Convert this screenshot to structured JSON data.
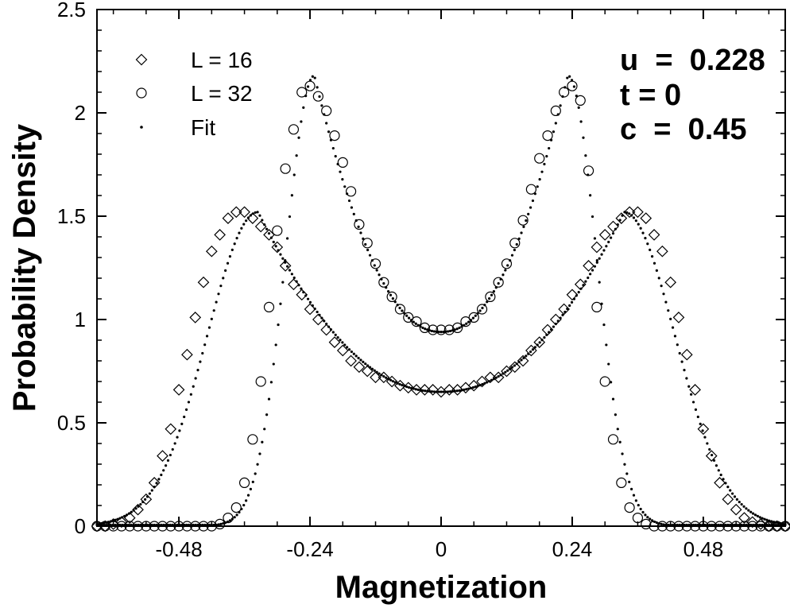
{
  "chart_data": {
    "type": "scatter",
    "xlabel": "Magnetization",
    "ylabel": "Probability  Density",
    "xlim": [
      -0.63,
      0.63
    ],
    "ylim": [
      0,
      2.5
    ],
    "xticks": [
      -0.48,
      -0.24,
      0,
      0.24,
      0.48
    ],
    "xtick_labels": [
      "-0.48",
      "-0.24",
      "0",
      "0.24",
      "0.48"
    ],
    "yticks": [
      0,
      0.5,
      1,
      1.5,
      2,
      2.5
    ],
    "ytick_labels": [
      "0",
      "0.5",
      "1",
      "1.5",
      "2",
      "2.5"
    ],
    "grid": false,
    "legend_position": "top-left",
    "annotations": [
      "u  =  0.228",
      "t = 0",
      "c  =  0.45"
    ],
    "series": [
      {
        "name": "L = 16",
        "marker": "diamond",
        "x": [
          -0.63,
          -0.615,
          -0.6,
          -0.585,
          -0.57,
          -0.555,
          -0.54,
          -0.525,
          -0.51,
          -0.495,
          -0.48,
          -0.465,
          -0.45,
          -0.435,
          -0.42,
          -0.405,
          -0.39,
          -0.375,
          -0.36,
          -0.345,
          -0.33,
          -0.315,
          -0.3,
          -0.285,
          -0.27,
          -0.255,
          -0.24,
          -0.225,
          -0.21,
          -0.195,
          -0.18,
          -0.165,
          -0.15,
          -0.135,
          -0.12,
          -0.105,
          -0.09,
          -0.075,
          -0.06,
          -0.045,
          -0.03,
          -0.015,
          0.0,
          0.015,
          0.03,
          0.045,
          0.06,
          0.075,
          0.09,
          0.105,
          0.12,
          0.135,
          0.15,
          0.165,
          0.18,
          0.195,
          0.21,
          0.225,
          0.24,
          0.255,
          0.27,
          0.285,
          0.3,
          0.315,
          0.33,
          0.345,
          0.36,
          0.375,
          0.39,
          0.405,
          0.42,
          0.435,
          0.45,
          0.465,
          0.48,
          0.495,
          0.51,
          0.525,
          0.54,
          0.555,
          0.57,
          0.585,
          0.6,
          0.615,
          0.63
        ],
        "y": [
          0.0,
          0.0,
          0.01,
          0.02,
          0.04,
          0.08,
          0.13,
          0.21,
          0.34,
          0.47,
          0.66,
          0.83,
          1.01,
          1.18,
          1.33,
          1.41,
          1.49,
          1.52,
          1.52,
          1.49,
          1.45,
          1.41,
          1.35,
          1.26,
          1.17,
          1.12,
          1.05,
          1.0,
          0.95,
          0.89,
          0.85,
          0.8,
          0.77,
          0.75,
          0.72,
          0.72,
          0.7,
          0.68,
          0.67,
          0.66,
          0.66,
          0.66,
          0.65,
          0.66,
          0.66,
          0.67,
          0.68,
          0.7,
          0.72,
          0.72,
          0.75,
          0.77,
          0.8,
          0.85,
          0.89,
          0.95,
          1.0,
          1.05,
          1.12,
          1.17,
          1.26,
          1.35,
          1.41,
          1.45,
          1.49,
          1.52,
          1.52,
          1.49,
          1.41,
          1.33,
          1.18,
          1.01,
          0.83,
          0.66,
          0.47,
          0.34,
          0.21,
          0.13,
          0.08,
          0.04,
          0.02,
          0.01,
          0.0,
          0.0,
          0.0
        ]
      },
      {
        "name": "L = 32",
        "marker": "circle",
        "x": [
          -0.63,
          -0.615,
          -0.6,
          -0.585,
          -0.57,
          -0.555,
          -0.54,
          -0.525,
          -0.51,
          -0.495,
          -0.48,
          -0.465,
          -0.45,
          -0.435,
          -0.42,
          -0.405,
          -0.39,
          -0.375,
          -0.36,
          -0.345,
          -0.33,
          -0.315,
          -0.3,
          -0.285,
          -0.27,
          -0.255,
          -0.24,
          -0.225,
          -0.21,
          -0.195,
          -0.18,
          -0.165,
          -0.15,
          -0.135,
          -0.12,
          -0.105,
          -0.09,
          -0.075,
          -0.06,
          -0.045,
          -0.03,
          -0.015,
          0.0,
          0.015,
          0.03,
          0.045,
          0.06,
          0.075,
          0.09,
          0.105,
          0.12,
          0.135,
          0.15,
          0.165,
          0.18,
          0.195,
          0.21,
          0.225,
          0.24,
          0.255,
          0.27,
          0.285,
          0.3,
          0.315,
          0.33,
          0.345,
          0.36,
          0.375,
          0.39,
          0.405,
          0.42,
          0.435,
          0.45,
          0.465,
          0.48,
          0.495,
          0.51,
          0.525,
          0.54,
          0.555,
          0.57,
          0.585,
          0.6,
          0.615,
          0.63
        ],
        "y": [
          0.0,
          0.0,
          0.0,
          0.0,
          0.0,
          0.0,
          0.0,
          0.0,
          0.0,
          0.0,
          0.0,
          0.0,
          0.0,
          0.0,
          0.0,
          0.01,
          0.04,
          0.09,
          0.21,
          0.42,
          0.7,
          1.06,
          1.43,
          1.73,
          1.92,
          2.1,
          2.13,
          2.08,
          2.01,
          1.89,
          1.76,
          1.62,
          1.46,
          1.37,
          1.27,
          1.18,
          1.11,
          1.05,
          1.01,
          0.99,
          0.96,
          0.95,
          0.95,
          0.95,
          0.96,
          0.99,
          1.01,
          1.05,
          1.11,
          1.18,
          1.27,
          1.37,
          1.48,
          1.63,
          1.78,
          1.89,
          2.01,
          2.1,
          2.13,
          2.06,
          1.72,
          1.06,
          0.7,
          0.42,
          0.21,
          0.09,
          0.04,
          0.01,
          0.0,
          0.0,
          0.0,
          0.0,
          0.0,
          0.0,
          0.0,
          0.0,
          0.0,
          0.0,
          0.0,
          0.0,
          0.0,
          0.0,
          0.0,
          0.0,
          0.0
        ]
      },
      {
        "name": "Fit",
        "marker": "dot",
        "curves": [
          {
            "peak_x": 0.335,
            "peak_y": 1.52,
            "center_y": 0.65,
            "width": 0.125
          },
          {
            "peak_x": 0.232,
            "peak_y": 2.18,
            "center_y": 0.94,
            "width": 0.07
          }
        ]
      }
    ]
  },
  "legend": {
    "items": [
      {
        "label": "L = 16",
        "marker": "diamond"
      },
      {
        "label": "L = 32",
        "marker": "circle"
      },
      {
        "label": "Fit",
        "marker": "dot"
      }
    ]
  }
}
